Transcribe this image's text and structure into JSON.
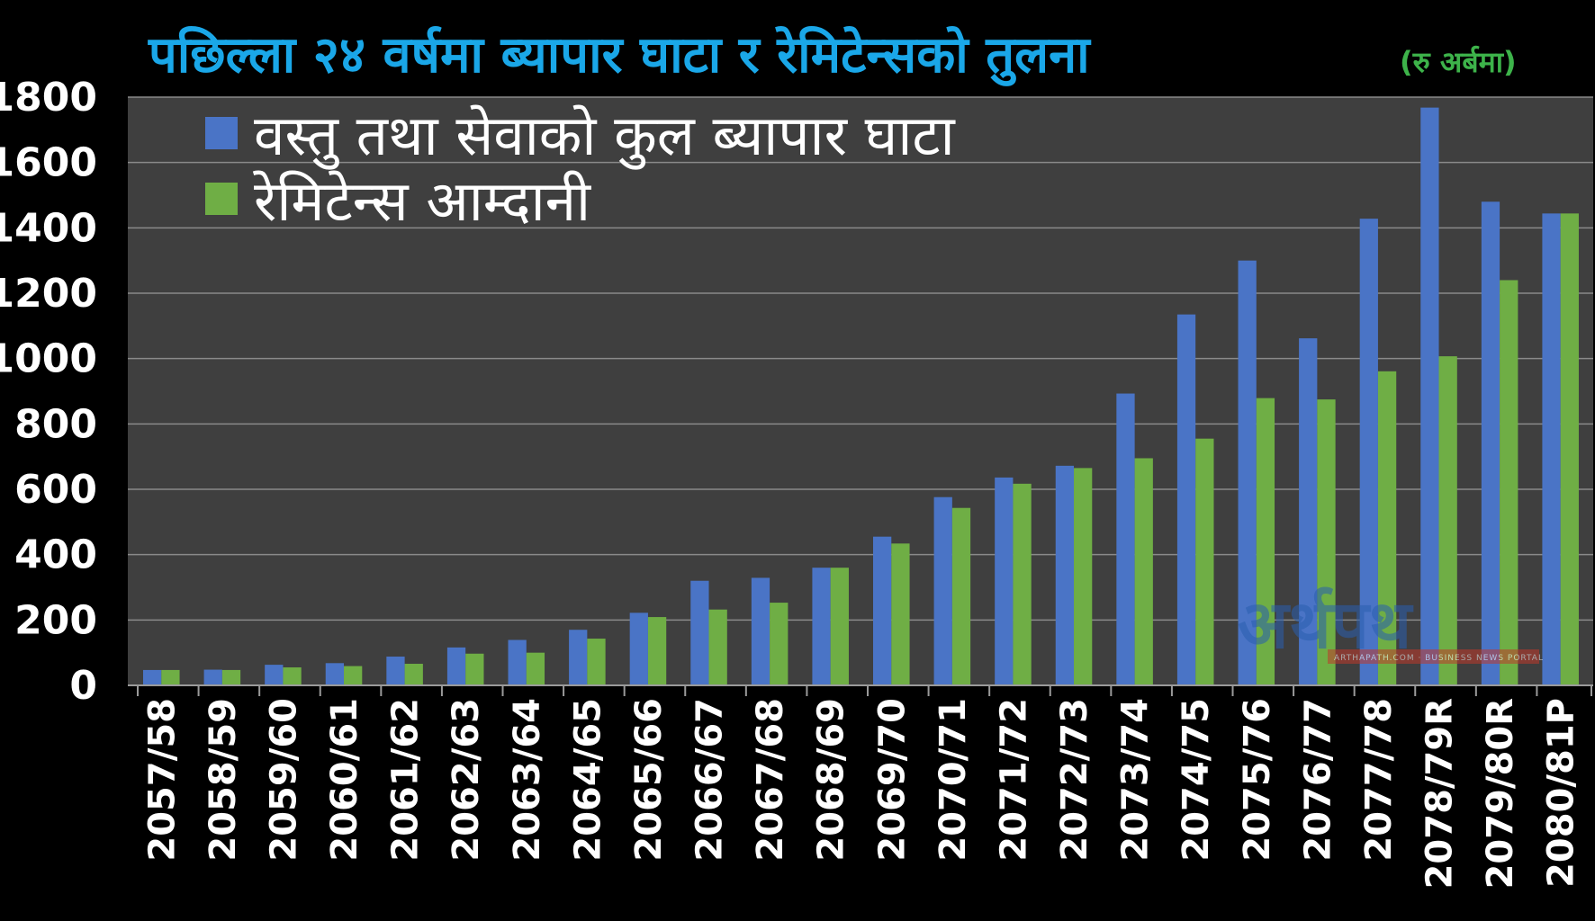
{
  "chart_data": {
    "type": "bar",
    "title": "पछिल्ला २४ वर्षमा ब्यापार घाटा र रेमिटेन्सको तुलना",
    "subtitle": "(रु अर्बमा)",
    "xlabel": "",
    "ylabel": "",
    "ylim": [
      0,
      1800
    ],
    "yticks": [
      0,
      200,
      400,
      600,
      800,
      1000,
      1200,
      1400,
      1600,
      1800
    ],
    "grid": true,
    "legend_position": "top-left",
    "categories": [
      "2057/58",
      "2058/59",
      "2059/60",
      "2060/61",
      "2061/62",
      "2062/63",
      "2063/64",
      "2064/65",
      "2065/66",
      "2066/67",
      "2067/68",
      "2068/69",
      "2069/70",
      "2070/71",
      "2071/72",
      "2072/73",
      "2073/74",
      "2074/75",
      "2075/76",
      "2076/77",
      "2077/78",
      "2078/79R",
      "2079/80R",
      "2080/81P"
    ],
    "series": [
      {
        "name": "वस्तु तथा सेवाको कुल ब्यापार घाटा",
        "color": "#4a74c6",
        "values": [
          47,
          48,
          63,
          68,
          88,
          116,
          139,
          170,
          222,
          320,
          329,
          360,
          455,
          576,
          636,
          672,
          893,
          1135,
          1300,
          1062,
          1428,
          1768,
          1480,
          1444
        ]
      },
      {
        "name": "रेमिटेन्स आम्दानी",
        "color": "#6fae45",
        "values": [
          47,
          47,
          55,
          59,
          66,
          97,
          100,
          143,
          209,
          232,
          253,
          360,
          434,
          543,
          617,
          665,
          695,
          755,
          879,
          875,
          961,
          1007,
          1240,
          1444
        ]
      }
    ]
  },
  "colors": {
    "title": "#1aa7e8",
    "subtitle": "#3db34a",
    "plot_background": "#3f3f3f",
    "gridline": "#8a8a8a"
  },
  "watermark": {
    "text": "अर्थपथ",
    "subtext": "ARTHAPATH.COM · BUSINESS NEWS PORTAL"
  }
}
